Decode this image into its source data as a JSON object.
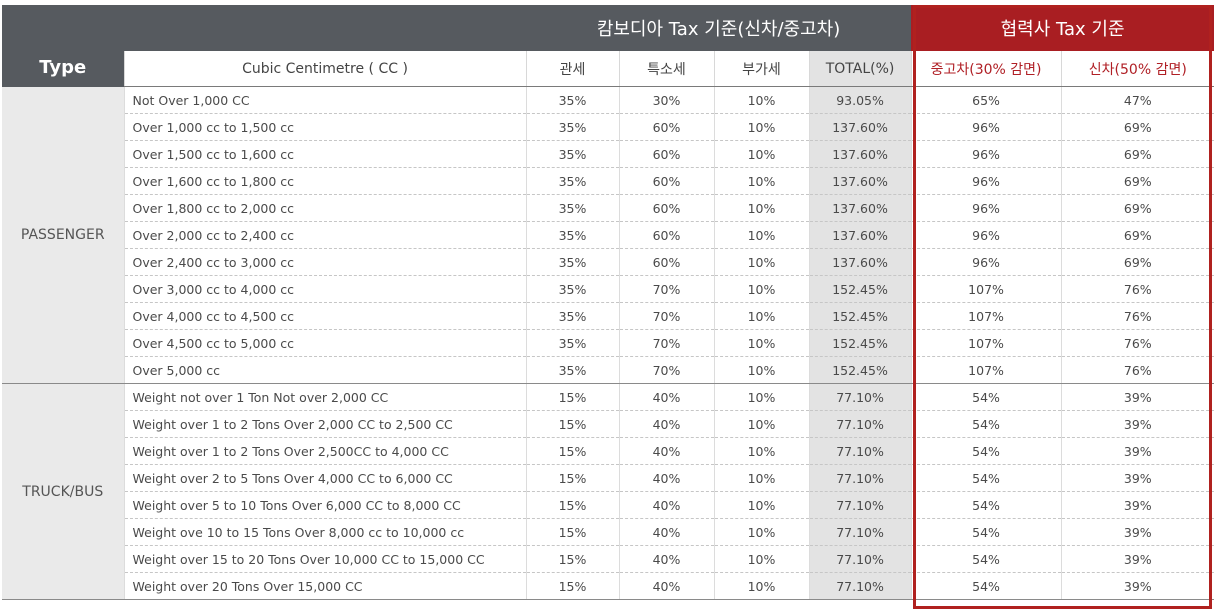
{
  "header": {
    "type_label": "Type",
    "cambodia_group": "캄보디아 Tax 기준(신차/중고차)",
    "partner_group": "협력사 Tax 기준",
    "cc_label": "Cubic Centimetre ( CC )",
    "col_customs": "관세",
    "col_special": "특소세",
    "col_vat": "부가세",
    "col_total": "TOTAL(%)",
    "col_used": "중고차(30% 감면)",
    "col_new": "신차(50% 감면)"
  },
  "groups": [
    {
      "type": "PASSENGER",
      "rows": [
        {
          "cc": "Not Over 1,000 CC",
          "customs": "35%",
          "special": "30%",
          "vat": "10%",
          "total": "93.05%",
          "used": "65%",
          "new": "47%"
        },
        {
          "cc": "Over 1,000 cc to 1,500 cc",
          "customs": "35%",
          "special": "60%",
          "vat": "10%",
          "total": "137.60%",
          "used": "96%",
          "new": "69%"
        },
        {
          "cc": "Over 1,500 cc to 1,600 cc",
          "customs": "35%",
          "special": "60%",
          "vat": "10%",
          "total": "137.60%",
          "used": "96%",
          "new": "69%"
        },
        {
          "cc": "Over 1,600 cc to 1,800 cc",
          "customs": "35%",
          "special": "60%",
          "vat": "10%",
          "total": "137.60%",
          "used": "96%",
          "new": "69%"
        },
        {
          "cc": "Over 1,800 cc to 2,000 cc",
          "customs": "35%",
          "special": "60%",
          "vat": "10%",
          "total": "137.60%",
          "used": "96%",
          "new": "69%"
        },
        {
          "cc": "Over 2,000 cc to 2,400 cc",
          "customs": "35%",
          "special": "60%",
          "vat": "10%",
          "total": "137.60%",
          "used": "96%",
          "new": "69%"
        },
        {
          "cc": "Over 2,400 cc to 3,000 cc",
          "customs": "35%",
          "special": "60%",
          "vat": "10%",
          "total": "137.60%",
          "used": "96%",
          "new": "69%"
        },
        {
          "cc": "Over 3,000 cc to 4,000 cc",
          "customs": "35%",
          "special": "70%",
          "vat": "10%",
          "total": "152.45%",
          "used": "107%",
          "new": "76%"
        },
        {
          "cc": "Over 4,000 cc to 4,500 cc",
          "customs": "35%",
          "special": "70%",
          "vat": "10%",
          "total": "152.45%",
          "used": "107%",
          "new": "76%"
        },
        {
          "cc": "Over 4,500 cc to 5,000 cc",
          "customs": "35%",
          "special": "70%",
          "vat": "10%",
          "total": "152.45%",
          "used": "107%",
          "new": "76%"
        },
        {
          "cc": "Over 5,000 cc",
          "customs": "35%",
          "special": "70%",
          "vat": "10%",
          "total": "152.45%",
          "used": "107%",
          "new": "76%"
        }
      ]
    },
    {
      "type": "TRUCK/BUS",
      "rows": [
        {
          "cc": "Weight not over 1 Ton Not over 2,000 CC",
          "customs": "15%",
          "special": "40%",
          "vat": "10%",
          "total": "77.10%",
          "used": "54%",
          "new": "39%"
        },
        {
          "cc": "Weight over 1 to 2 Tons Over 2,000 CC to 2,500 CC",
          "customs": "15%",
          "special": "40%",
          "vat": "10%",
          "total": "77.10%",
          "used": "54%",
          "new": "39%"
        },
        {
          "cc": "Weight over 1 to 2 Tons Over 2,500CC to 4,000 CC",
          "customs": "15%",
          "special": "40%",
          "vat": "10%",
          "total": "77.10%",
          "used": "54%",
          "new": "39%"
        },
        {
          "cc": "Weight over 2 to 5 Tons Over 4,000 CC to 6,000 CC",
          "customs": "15%",
          "special": "40%",
          "vat": "10%",
          "total": "77.10%",
          "used": "54%",
          "new": "39%"
        },
        {
          "cc": "Weight over 5 to 10 Tons Over 6,000 CC to 8,000 CC",
          "customs": "15%",
          "special": "40%",
          "vat": "10%",
          "total": "77.10%",
          "used": "54%",
          "new": "39%"
        },
        {
          "cc": "Weight ove 10 to 15 Tons Over 8,000 cc to 10,000 cc",
          "customs": "15%",
          "special": "40%",
          "vat": "10%",
          "total": "77.10%",
          "used": "54%",
          "new": "39%"
        },
        {
          "cc": "Weight over 15 to 20 Tons Over 10,000 CC to 15,000 CC",
          "customs": "15%",
          "special": "40%",
          "vat": "10%",
          "total": "77.10%",
          "used": "54%",
          "new": "39%"
        },
        {
          "cc": "Weight over 20 Tons Over 15,000 CC",
          "customs": "15%",
          "special": "40%",
          "vat": "10%",
          "total": "77.10%",
          "used": "54%",
          "new": "39%"
        }
      ]
    }
  ],
  "colors": {
    "header_dark": "#565a5f",
    "header_red": "#a91e22",
    "total_column_bg": "#e3e3e3",
    "type_column_bg": "#eaeaea",
    "red_subheader_text": "#b01f25"
  }
}
